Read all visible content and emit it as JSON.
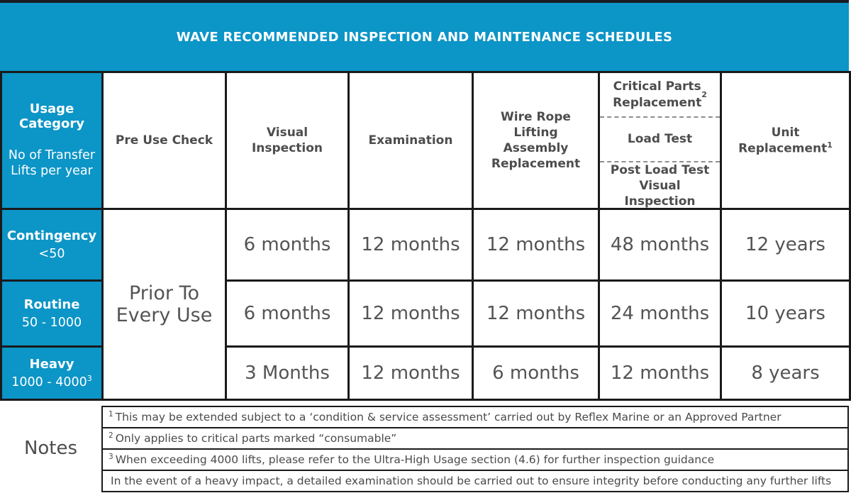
{
  "banner": {
    "title": "WAVE RECOMMENDED INSPECTION AND MAINTENANCE SCHEDULES"
  },
  "table": {
    "usage_header": {
      "title": "Usage\nCategory",
      "subtitle": "No of Transfer\nLifts per year"
    },
    "col_pre_use": "Pre Use Check",
    "col_visual": "Visual\nInspection",
    "col_examination": "Examination",
    "col_wire_rope": "Wire Rope\nLifting\nAssembly\nReplacement",
    "critical": {
      "top": "Critical Parts\nReplacement",
      "top_sup": "2",
      "mid": "Load Test",
      "bottom": "Post Load Test\nVisual\nInspection"
    },
    "unit": {
      "label": "Unit\nReplacement",
      "sup": "1"
    },
    "pre_use_value": "Prior To\nEvery Use",
    "rows": [
      {
        "category": "Contingency",
        "range": "<50",
        "range_sup": "",
        "visual": "6 months",
        "examination": "12 months",
        "wire_rope": "12 months",
        "critical": "48 months",
        "unit": "12 years"
      },
      {
        "category": "Routine",
        "range": "50 - 1000",
        "range_sup": "",
        "visual": "6 months",
        "examination": "12 months",
        "wire_rope": "12 months",
        "critical": "24 months",
        "unit": "10 years"
      },
      {
        "category": "Heavy",
        "range": "1000 - 4000",
        "range_sup": "3",
        "visual": "3 Months",
        "examination": "12 months",
        "wire_rope": "6 months",
        "critical": "12 months",
        "unit": "8 years"
      }
    ]
  },
  "notes": {
    "label": "Notes",
    "items": [
      {
        "sup": "1",
        "text": "This may be extended subject to a ‘condition & service assessment’ carried out by Reflex Marine or an Approved Partner"
      },
      {
        "sup": "2",
        "text": "Only applies to critical parts marked “consumable”"
      },
      {
        "sup": "3",
        "text": "When exceeding 4000 lifts, please refer to the Ultra-High Usage section (4.6) for further inspection guidance"
      },
      {
        "sup": "",
        "text": "In the event of a heavy impact, a detailed examination should be carried out to ensure integrity before conducting any further lifts"
      }
    ]
  },
  "colors": {
    "accent_teal": "#0C95C7",
    "border_dark": "#1A1A1A",
    "header_text": "#4D4D4D",
    "value_text": "#545454"
  }
}
